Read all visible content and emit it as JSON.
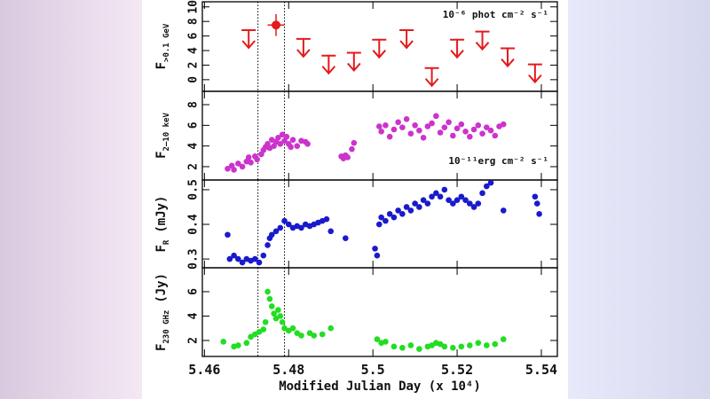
{
  "chart_data": [
    {
      "type": "upper-limits",
      "x": [
        5.477
      ],
      "values": [
        7.5
      ],
      "xerr": [
        0.002
      ],
      "yerr": [
        1.5
      ],
      "color": "#e41a1c",
      "upper_limits": {
        "x": [
          5.4705,
          5.4835,
          5.4895,
          5.4955,
          5.5015,
          5.508,
          5.514,
          5.52,
          5.526,
          5.532,
          5.5385
        ],
        "values": [
          6.8,
          5.6,
          3.3,
          3.7,
          5.5,
          6.8,
          1.6,
          5.5,
          6.6,
          4.3,
          2.1
        ]
      },
      "ylim": [
        -1.6,
        10.7
      ],
      "yticks": [
        0,
        2,
        4,
        6,
        8,
        10
      ],
      "ylabel": "F",
      "ylabel_sub": ">0.1 GeV",
      "annotation": "10⁻⁶ phot cm⁻² s⁻¹"
    },
    {
      "type": "scatter",
      "color": "#cc33cc",
      "x": [
        5.4655,
        5.4665,
        5.467,
        5.468,
        5.469,
        5.47,
        5.4705,
        5.471,
        5.472,
        5.4725,
        5.4735,
        5.474,
        5.4745,
        5.475,
        5.4755,
        5.476,
        5.4765,
        5.477,
        5.4775,
        5.478,
        5.4785,
        5.479,
        5.4795,
        5.48,
        5.4805,
        5.481,
        5.482,
        5.483,
        5.484,
        5.4845,
        5.4925,
        5.493,
        5.4935,
        5.494,
        5.495,
        5.4955,
        5.5015,
        5.502,
        5.503,
        5.504,
        5.505,
        5.506,
        5.507,
        5.508,
        5.509,
        5.51,
        5.511,
        5.512,
        5.513,
        5.514,
        5.515,
        5.516,
        5.517,
        5.518,
        5.519,
        5.52,
        5.521,
        5.522,
        5.523,
        5.524,
        5.525,
        5.526,
        5.527,
        5.528,
        5.529,
        5.53,
        5.531
      ],
      "values": [
        1.8,
        2.1,
        1.7,
        2.3,
        2.0,
        2.5,
        2.9,
        2.4,
        3.0,
        2.7,
        3.2,
        3.6,
        3.9,
        4.2,
        3.8,
        4.6,
        4.0,
        4.4,
        4.8,
        4.2,
        5.1,
        4.5,
        4.9,
        4.2,
        3.9,
        4.6,
        4.0,
        4.5,
        4.4,
        4.2,
        3.0,
        2.8,
        3.1,
        2.9,
        3.7,
        4.3,
        5.9,
        5.4,
        6.0,
        4.9,
        5.6,
        6.3,
        5.8,
        6.6,
        5.2,
        6.0,
        5.5,
        4.8,
        5.9,
        6.2,
        6.9,
        5.3,
        5.8,
        6.3,
        5.0,
        5.7,
        6.1,
        5.4,
        4.9,
        5.6,
        6.0,
        5.2,
        5.8,
        5.5,
        5.0,
        5.9,
        6.1
      ],
      "ylim": [
        0.71,
        9.29
      ],
      "yticks": [
        2,
        4,
        6,
        8
      ],
      "ylabel": "F",
      "ylabel_sub": "2–10 keV",
      "annotation": "10⁻¹¹erg cm⁻² s⁻¹"
    },
    {
      "type": "scatter",
      "color": "#1a1acc",
      "x": [
        5.4655,
        5.466,
        5.467,
        5.468,
        5.469,
        5.47,
        5.471,
        5.472,
        5.473,
        5.474,
        5.475,
        5.4755,
        5.476,
        5.477,
        5.478,
        5.479,
        5.48,
        5.481,
        5.482,
        5.483,
        5.484,
        5.485,
        5.486,
        5.487,
        5.488,
        5.489,
        5.49,
        5.4935,
        5.5005,
        5.501,
        5.5015,
        5.502,
        5.503,
        5.504,
        5.505,
        5.506,
        5.507,
        5.508,
        5.509,
        5.51,
        5.511,
        5.512,
        5.513,
        5.514,
        5.515,
        5.516,
        5.517,
        5.518,
        5.519,
        5.52,
        5.521,
        5.522,
        5.523,
        5.524,
        5.525,
        5.526,
        5.527,
        5.528,
        5.531,
        5.5385,
        5.539,
        5.5395
      ],
      "values": [
        0.37,
        0.3,
        0.31,
        0.3,
        0.29,
        0.3,
        0.295,
        0.3,
        0.29,
        0.31,
        0.34,
        0.36,
        0.37,
        0.38,
        0.39,
        0.41,
        0.4,
        0.39,
        0.395,
        0.39,
        0.4,
        0.395,
        0.4,
        0.405,
        0.41,
        0.415,
        0.38,
        0.36,
        0.33,
        0.31,
        0.4,
        0.42,
        0.41,
        0.43,
        0.42,
        0.44,
        0.43,
        0.45,
        0.44,
        0.46,
        0.45,
        0.47,
        0.46,
        0.48,
        0.49,
        0.48,
        0.5,
        0.47,
        0.46,
        0.47,
        0.48,
        0.47,
        0.46,
        0.45,
        0.46,
        0.49,
        0.51,
        0.52,
        0.44,
        0.48,
        0.46,
        0.43
      ],
      "ylim": [
        0.2747,
        0.528
      ],
      "yticks": [
        0.3,
        0.4,
        0.5
      ],
      "ylabel": "F",
      "ylabel_sub": "R",
      "ylabel_unit": "(mJy)"
    },
    {
      "type": "scatter",
      "color": "#22dd22",
      "x": [
        5.4645,
        5.467,
        5.468,
        5.47,
        5.471,
        5.472,
        5.473,
        5.474,
        5.4745,
        5.475,
        5.4755,
        5.476,
        5.4765,
        5.477,
        5.4775,
        5.478,
        5.4785,
        5.479,
        5.48,
        5.481,
        5.482,
        5.483,
        5.485,
        5.486,
        5.488,
        5.49,
        5.501,
        5.502,
        5.503,
        5.505,
        5.507,
        5.509,
        5.511,
        5.513,
        5.514,
        5.515,
        5.516,
        5.517,
        5.519,
        5.521,
        5.523,
        5.525,
        5.527,
        5.529,
        5.531
      ],
      "values": [
        1.9,
        1.5,
        1.6,
        1.8,
        2.3,
        2.5,
        2.7,
        2.9,
        3.5,
        6.0,
        5.4,
        4.8,
        4.2,
        3.8,
        4.5,
        4.0,
        3.5,
        3.0,
        2.8,
        3.0,
        2.6,
        2.4,
        2.6,
        2.4,
        2.5,
        3.0,
        2.1,
        1.8,
        1.9,
        1.5,
        1.4,
        1.6,
        1.3,
        1.5,
        1.6,
        1.8,
        1.7,
        1.5,
        1.4,
        1.5,
        1.6,
        1.8,
        1.6,
        1.7,
        2.1
      ],
      "ylim": [
        0.69,
        7.96
      ],
      "yticks": [
        2,
        4,
        6
      ],
      "ylabel": "F",
      "ylabel_sub": "230 GHz",
      "ylabel_unit": "(Jy)",
      "xlim": [
        5.4595,
        5.5438
      ],
      "xticks": [
        5.46,
        5.48,
        5.5,
        5.52,
        5.54
      ],
      "xlabel": "Modified Julian Day (x 10⁴)",
      "vlines": [
        5.4727,
        5.479
      ]
    }
  ]
}
